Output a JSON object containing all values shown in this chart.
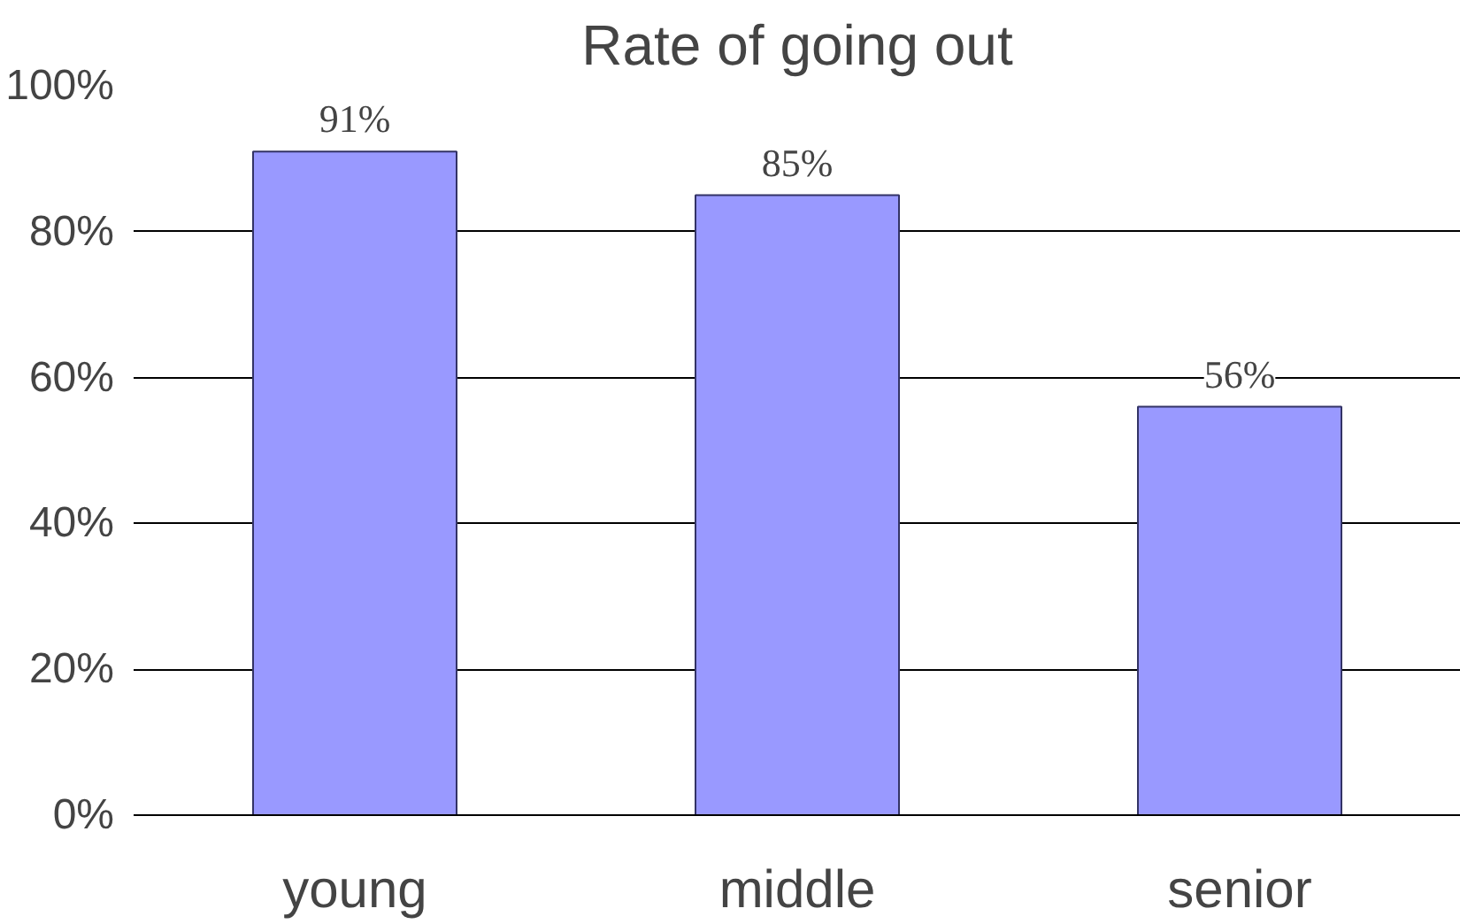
{
  "chart_data": {
    "type": "bar",
    "title": "Rate of going out",
    "categories": [
      "young",
      "middle",
      "senior"
    ],
    "values": [
      91,
      85,
      56
    ],
    "color": "#9999ff",
    "ylim": [
      0,
      100
    ],
    "yticks": [
      {
        "value": 0,
        "label": "0%"
      },
      {
        "value": 20,
        "label": "20%"
      },
      {
        "value": 40,
        "label": "40%"
      },
      {
        "value": 60,
        "label": "60%"
      },
      {
        "value": 80,
        "label": "80%"
      },
      {
        "value": 100,
        "label": "100%"
      }
    ],
    "grid": "y",
    "data_labels": true,
    "value_labels": [
      "91%",
      "85%",
      "56%"
    ]
  }
}
